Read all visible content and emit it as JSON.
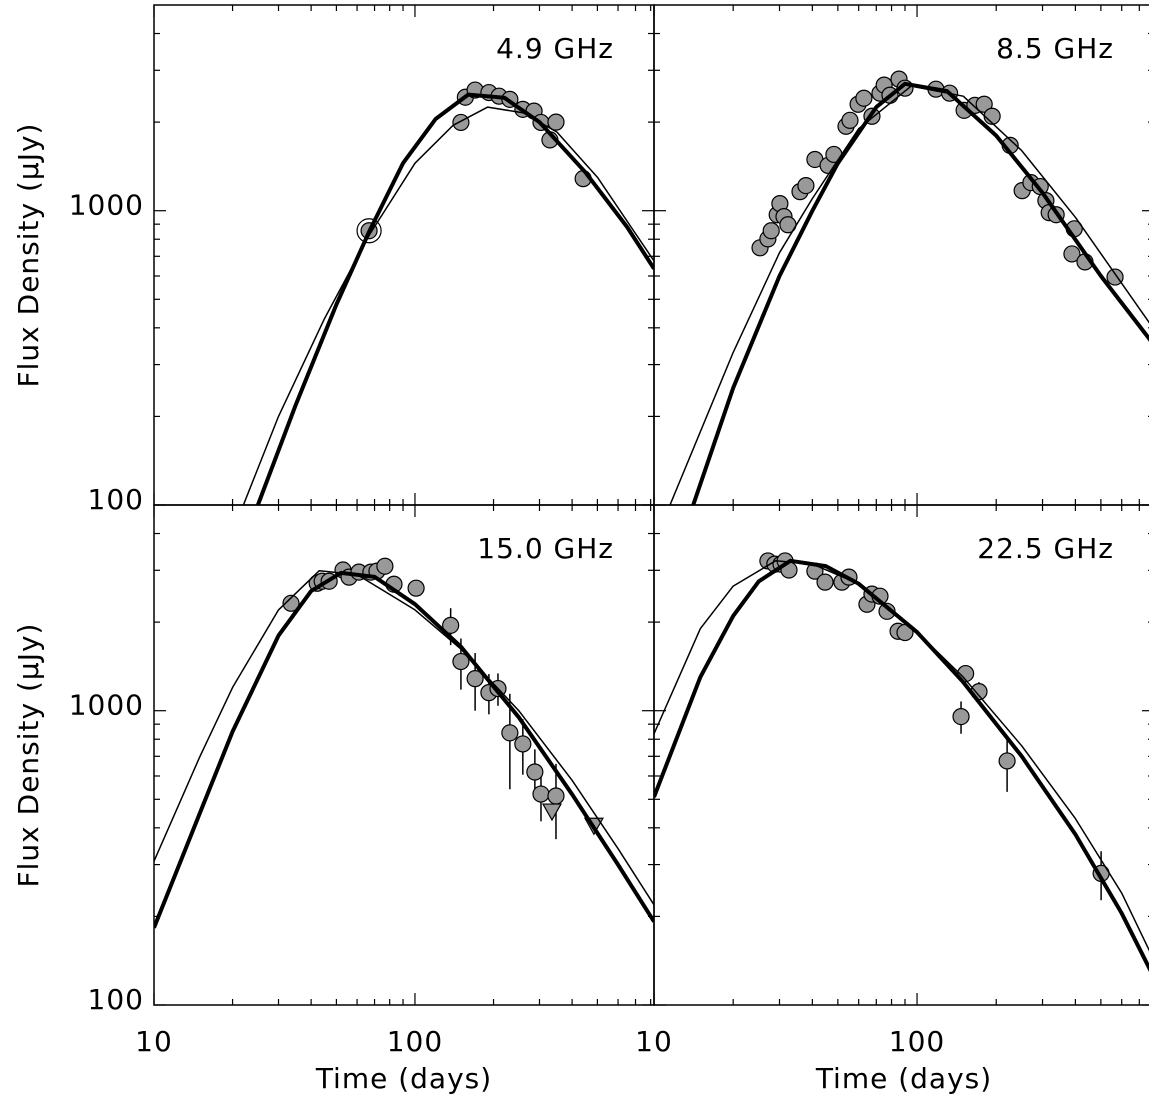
{
  "chart_data": [
    {
      "type": "scatter",
      "title": "4.9 GHz",
      "ylabel": "Flux Density (μJy)",
      "log_x": true,
      "log_y": true,
      "xlim": [
        10,
        824
      ],
      "ylim": [
        100,
        5000
      ],
      "xticks": [
        10,
        100
      ],
      "yticks": [
        100,
        1000
      ],
      "x_minor_ticks": [
        20,
        30,
        40,
        50,
        60,
        70,
        80,
        90,
        200,
        300,
        400,
        500,
        600,
        700,
        800
      ],
      "y_minor_ticks": [
        200,
        300,
        400,
        500,
        600,
        700,
        800,
        900,
        2000,
        3000,
        4000
      ],
      "series": [
        {
          "kind": "points",
          "marker": "circle",
          "color": "#999999",
          "circled_points": [
            0
          ],
          "x": [
            66.7,
            150,
            156,
            170,
            192,
            210,
            231,
            259,
            286,
            304,
            329,
            347,
            441
          ],
          "values": [
            855,
            1995,
            2430,
            2570,
            2520,
            2450,
            2390,
            2210,
            2180,
            1995,
            1740,
            2000,
            1285
          ]
        },
        {
          "kind": "line",
          "line_width": 4,
          "color": "#000000",
          "x": [
            25,
            35,
            50,
            67,
            90,
            120,
            160,
            220,
            300,
            450,
            650,
            824
          ],
          "values": [
            100,
            220,
            480,
            855,
            1450,
            2050,
            2480,
            2420,
            2000,
            1350,
            880,
            635
          ]
        },
        {
          "kind": "line",
          "line_width": 1.5,
          "color": "#000000",
          "x": [
            22,
            30,
            45,
            67,
            100,
            140,
            190,
            260,
            350,
            500,
            824
          ],
          "values": [
            100,
            200,
            430,
            830,
            1450,
            1950,
            2250,
            2150,
            1850,
            1300,
            675
          ]
        }
      ]
    },
    {
      "type": "scatter",
      "title": "8.5 GHz",
      "log_x": true,
      "log_y": true,
      "xlim": [
        10,
        796
      ],
      "ylim": [
        100,
        5000
      ],
      "xticks": [
        10,
        100
      ],
      "yticks": [
        100,
        1000
      ],
      "x_minor_ticks": [
        20,
        30,
        40,
        50,
        60,
        70,
        80,
        90,
        200,
        300,
        400,
        500,
        600,
        700
      ],
      "y_minor_ticks": [
        200,
        300,
        400,
        500,
        600,
        700,
        800,
        900,
        2000,
        3000,
        4000
      ],
      "series": [
        {
          "kind": "points",
          "marker": "circle",
          "color": "#999999",
          "x": [
            25.3,
            27.1,
            27.9,
            29.4,
            30.1,
            31.2,
            32.3,
            35.9,
            37.8,
            40.9,
            45.9,
            48.3,
            53.7,
            55.6,
            59.7,
            62.8,
            67.4,
            72.3,
            75.0,
            78.9,
            85.4,
            90.0,
            118,
            133,
            151,
            166,
            180,
            193,
            226,
            251,
            271,
            294,
            309,
            318,
            338,
            388,
            396,
            435,
            566
          ],
          "values": [
            748,
            802,
            855,
            969,
            1057,
            955,
            896,
            1161,
            1217,
            1493,
            1425,
            1553,
            1936,
            2028,
            2300,
            2411,
            2094,
            2508,
            2672,
            2468,
            2800,
            2608,
            2588,
            2508,
            2193,
            2280,
            2300,
            2094,
            1667,
            1170,
            1246,
            1208,
            1082,
            985,
            969,
            713,
            868,
            670,
            595
          ]
        },
        {
          "kind": "line",
          "line_width": 4,
          "color": "#000000",
          "x": [
            14.1,
            20,
            30,
            40,
            50,
            70,
            90,
            130,
            200,
            300,
            500,
            796
          ],
          "values": [
            100,
            250,
            600,
            1000,
            1450,
            2250,
            2700,
            2550,
            1800,
            1150,
            600,
            350
          ]
        },
        {
          "kind": "line",
          "line_width": 1.5,
          "color": "#000000",
          "x": [
            11.5,
            20,
            30,
            40,
            60,
            95,
            150,
            250,
            400,
            796
          ],
          "values": [
            100,
            330,
            720,
            1100,
            1900,
            2650,
            2450,
            1600,
            950,
            395
          ]
        }
      ]
    },
    {
      "type": "scatter",
      "title": "15.0 GHz",
      "ylabel": "Flux Density (μJy)",
      "xlabel": "Time (days)",
      "log_x": true,
      "log_y": true,
      "xlim": [
        10,
        824
      ],
      "ylim": [
        100,
        5000
      ],
      "xticks": [
        10,
        100
      ],
      "yticks": [
        100,
        1000
      ],
      "x_minor_ticks": [
        20,
        30,
        40,
        50,
        60,
        70,
        80,
        90,
        200,
        300,
        400,
        500,
        600,
        700,
        800
      ],
      "y_minor_ticks": [
        200,
        300,
        400,
        500,
        600,
        700,
        800,
        900,
        2000,
        3000,
        4000
      ],
      "series": [
        {
          "kind": "points",
          "marker": "circle",
          "color": "#999999",
          "x": [
            33.5,
            42.2,
            44.1,
            46.9,
            53.0,
            55.9,
            61.0,
            67.8,
            71.5,
            76.7,
            83.1,
            101,
            137,
            150,
            170,
            192,
            208,
            231,
            259,
            288,
            304,
            347
          ],
          "values": [
            2317,
            2710,
            2754,
            2754,
            3006,
            2844,
            2958,
            2958,
            2980,
            3097,
            2690,
            2608,
            1950,
            1469,
            1285,
            1152,
            1189,
            841,
            771,
            619,
            521,
            513
          ],
          "errors": [
            null,
            null,
            null,
            null,
            null,
            null,
            null,
            null,
            null,
            null,
            null,
            null,
            280,
            290,
            285,
            180,
            150,
            300,
            165,
            120,
            100,
            147
          ]
        },
        {
          "kind": "points",
          "marker": "triangle-down",
          "color": "#999999",
          "x": [
            335,
            485
          ],
          "values": [
            456,
            408
          ]
        },
        {
          "kind": "line",
          "line_width": 4,
          "color": "#000000",
          "x": [
            10,
            15,
            20,
            30,
            40,
            52,
            70,
            100,
            150,
            250,
            400,
            600,
            824
          ],
          "values": [
            183,
            450,
            850,
            1800,
            2550,
            2940,
            2850,
            2300,
            1650,
            950,
            520,
            300,
            192
          ]
        },
        {
          "kind": "line",
          "line_width": 1.5,
          "color": "#000000",
          "x": [
            10,
            15,
            20,
            30,
            43,
            60,
            100,
            150,
            250,
            400,
            600,
            824
          ],
          "values": [
            308,
            700,
            1200,
            2200,
            2990,
            2900,
            2200,
            1620,
            1000,
            580,
            340,
            219
          ]
        }
      ]
    },
    {
      "type": "scatter",
      "title": "22.5 GHz",
      "xlabel": "Time (days)",
      "log_x": true,
      "log_y": true,
      "xlim": [
        10,
        796
      ],
      "ylim": [
        100,
        5000
      ],
      "xticks": [
        10,
        100
      ],
      "yticks": [
        100,
        1000
      ],
      "x_minor_ticks": [
        20,
        30,
        40,
        50,
        60,
        70,
        80,
        90,
        200,
        300,
        400,
        500,
        600,
        700
      ],
      "y_minor_ticks": [
        200,
        300,
        400,
        500,
        600,
        700,
        800,
        900,
        2000,
        3000,
        4000
      ],
      "series": [
        {
          "kind": "points",
          "marker": "circle",
          "color": "#999999",
          "x": [
            27.1,
            28.8,
            30.4,
            31.5,
            32.6,
            40.9,
            44.7,
            51.8,
            55.1,
            64.5,
            67.4,
            72.3,
            76.9,
            84.7,
            90.0,
            153,
            172,
            147,
            220,
            501
          ],
          "values": [
            3228,
            3148,
            3148,
            3228,
            3006,
            2980,
            2735,
            2735,
            2844,
            2300,
            2490,
            2450,
            2176,
            1862,
            1843,
            1337,
            1161,
            955,
            675,
            280
          ],
          "errors": [
            null,
            null,
            null,
            null,
            null,
            null,
            null,
            null,
            null,
            null,
            null,
            null,
            null,
            null,
            null,
            90,
            90,
            120,
            145,
            53
          ]
        },
        {
          "kind": "line",
          "line_width": 4,
          "color": "#000000",
          "x": [
            10,
            15,
            20,
            25,
            33,
            45,
            60,
            100,
            150,
            250,
            400,
            600,
            796
          ],
          "values": [
            509,
            1300,
            2100,
            2750,
            3230,
            3100,
            2700,
            1850,
            1250,
            700,
            380,
            205,
            124
          ]
        },
        {
          "kind": "line",
          "line_width": 1.5,
          "color": "#000000",
          "x": [
            10,
            15,
            20,
            29,
            40,
            60,
            100,
            150,
            250,
            400,
            600,
            796
          ],
          "values": [
            835,
            1900,
            2650,
            3230,
            3150,
            2700,
            1850,
            1300,
            760,
            430,
            240,
            142
          ]
        }
      ]
    }
  ]
}
